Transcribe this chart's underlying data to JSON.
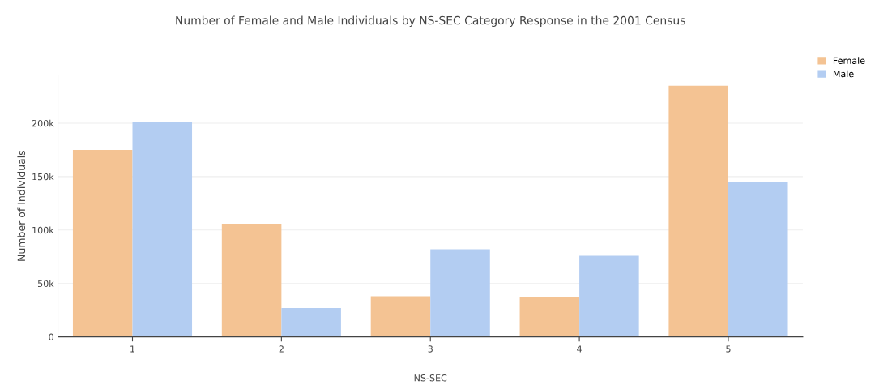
{
  "chart_data": {
    "type": "bar",
    "title": "Number of Female and Male Individuals by NS-SEC Category Response in the 2001 Census",
    "xlabel": "NS-SEC",
    "ylabel": "Number of Individuals",
    "categories": [
      "1",
      "2",
      "3",
      "4",
      "5"
    ],
    "series": [
      {
        "name": "Female",
        "color": "#f4c393",
        "values": [
          175000,
          106000,
          38000,
          37000,
          235000
        ]
      },
      {
        "name": "Male",
        "color": "#b3cdf2",
        "values": [
          201000,
          27000,
          82000,
          76000,
          145000
        ]
      }
    ],
    "yticks": [
      0,
      {
        "value": 50000,
        "label": "50k"
      },
      {
        "value": 100000,
        "label": "100k"
      },
      {
        "value": 150000,
        "label": "150k"
      },
      {
        "value": 200000,
        "label": "200k"
      }
    ],
    "ylim": [
      0,
      245000
    ],
    "grid": "y",
    "legend": "top right"
  }
}
